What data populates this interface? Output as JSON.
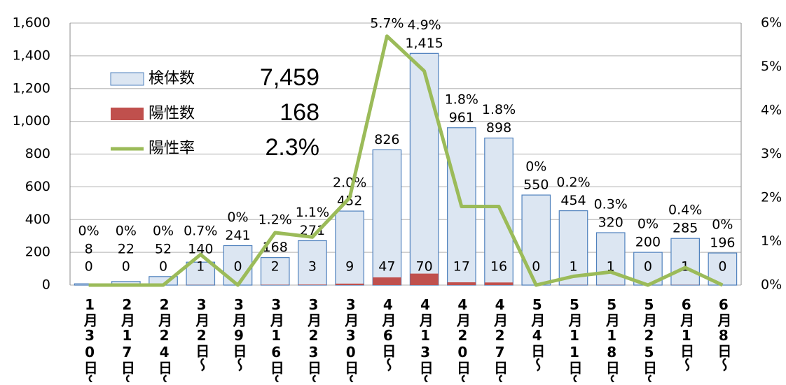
{
  "chart_data": {
    "type": "bar",
    "categories": [
      "1月30日～",
      "2月17日～",
      "2月24日～",
      "3月2日～",
      "3月9日～",
      "3月16日～",
      "3月23日～",
      "3月30日～",
      "4月6日～",
      "4月13日～",
      "4月20日～",
      "4月27日～",
      "5月4日～",
      "5月11日～",
      "5月18日～",
      "5月25日～",
      "6月1日～",
      "6月8日～"
    ],
    "series": [
      {
        "name": "検体数",
        "color": "#dce6f2",
        "values": [
          8,
          22,
          52,
          140,
          241,
          168,
          271,
          452,
          826,
          1415,
          961,
          898,
          550,
          454,
          320,
          200,
          285,
          196
        ],
        "value_labels": [
          "8",
          "22",
          "52",
          "140",
          "241",
          "168",
          "271",
          "452",
          "826",
          "1,415",
          "961",
          "898",
          "550",
          "454",
          "320",
          "200",
          "285",
          "196"
        ]
      },
      {
        "name": "陽性数",
        "color": "#c0504d",
        "values": [
          0,
          0,
          0,
          1,
          0,
          2,
          3,
          9,
          47,
          70,
          17,
          16,
          0,
          1,
          1,
          0,
          1,
          0
        ]
      },
      {
        "name": "陽性率",
        "color": "#9bbb59",
        "axis": "y2",
        "values": [
          0,
          0,
          0,
          0.7,
          0,
          1.2,
          1.1,
          2.0,
          5.7,
          4.9,
          1.8,
          1.8,
          0,
          0.2,
          0.3,
          0,
          0.4,
          0
        ],
        "value_labels": [
          "0%",
          "0%",
          "0%",
          "0.7%",
          "0%",
          "1.2%",
          "1.1%",
          "2.0%",
          "5.7%",
          "4.9%",
          "1.8%",
          "1.8%",
          "0%",
          "0.2%",
          "0.3%",
          "0%",
          "0.4%",
          "0%"
        ]
      }
    ],
    "totals": [
      {
        "value": 7459,
        "label": "7,459"
      },
      168,
      {
        "value": 2.3,
        "label": "2.3%"
      }
    ],
    "ylim": [
      0,
      1600
    ],
    "yticks": [
      0,
      200,
      400,
      600,
      800,
      {
        "value": 1000,
        "label": "1,000"
      },
      {
        "value": 1200,
        "label": "1,200"
      },
      {
        "value": 1400,
        "label": "1,400"
      },
      {
        "value": 1600,
        "label": "1,600"
      }
    ],
    "y2lim": [
      0,
      6
    ],
    "y2ticks": [
      {
        "value": 0,
        "label": "0%"
      },
      {
        "value": 1,
        "label": "1%"
      },
      {
        "value": 2,
        "label": "2%"
      },
      {
        "value": 3,
        "label": "3%"
      },
      {
        "value": 4,
        "label": "4%"
      },
      {
        "value": 5,
        "label": "5%"
      },
      {
        "value": 6,
        "label": "6%"
      }
    ],
    "grid": true
  }
}
